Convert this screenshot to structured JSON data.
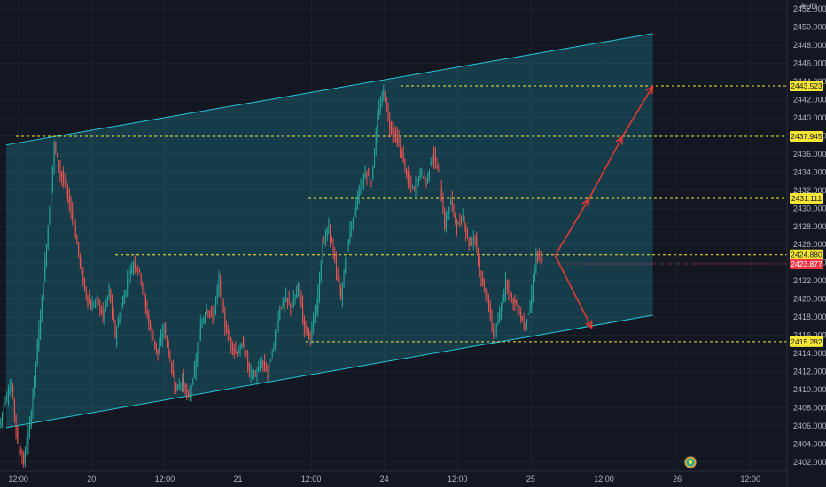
{
  "chart_data": {
    "type": "candlestick",
    "currency": "AUD",
    "y_axis": {
      "range": [
        2401,
        2453
      ],
      "ticks": [
        "2402.000",
        "2404.000",
        "2406.000",
        "2408.000",
        "2410.000",
        "2412.000",
        "2414.000",
        "2416.000",
        "2418.000",
        "2420.000",
        "2422.000",
        "2424.000",
        "2426.000",
        "2428.000",
        "2430.000",
        "2432.000",
        "2434.000",
        "2436.000",
        "2438.000",
        "2440.000",
        "2442.000",
        "2444.000",
        "2446.000",
        "2448.000",
        "2450.000",
        "2452.000"
      ]
    },
    "x_axis": {
      "labels": [
        {
          "text": "12:00",
          "t": 0
        },
        {
          "text": "20",
          "t": 12
        },
        {
          "text": "12:00",
          "t": 24
        },
        {
          "text": "21",
          "t": 36
        },
        {
          "text": "12:00",
          "t": 48
        },
        {
          "text": "24",
          "t": 60
        },
        {
          "text": "12:00",
          "t": 72
        },
        {
          "text": "25",
          "t": 84
        },
        {
          "text": "12:00",
          "t": 96
        },
        {
          "text": "26",
          "t": 108
        },
        {
          "text": "12:00",
          "t": 120
        }
      ],
      "range": [
        -3,
        126
      ]
    },
    "price_path": [
      [
        -3,
        2406
      ],
      [
        -2,
        2409
      ],
      [
        -1,
        2410.5
      ],
      [
        0,
        2404
      ],
      [
        1,
        2402
      ],
      [
        2,
        2406
      ],
      [
        3,
        2413
      ],
      [
        4,
        2420
      ],
      [
        5,
        2428
      ],
      [
        6,
        2437
      ],
      [
        7,
        2434
      ],
      [
        8,
        2432
      ],
      [
        9,
        2429
      ],
      [
        10,
        2425
      ],
      [
        11,
        2421
      ],
      [
        12,
        2419
      ],
      [
        13,
        2420
      ],
      [
        14,
        2418
      ],
      [
        15,
        2421
      ],
      [
        16,
        2416
      ],
      [
        17,
        2419
      ],
      [
        18,
        2422
      ],
      [
        19,
        2424
      ],
      [
        20,
        2423
      ],
      [
        21,
        2419
      ],
      [
        22,
        2416
      ],
      [
        23,
        2414
      ],
      [
        24,
        2417
      ],
      [
        25,
        2413
      ],
      [
        26,
        2410
      ],
      [
        27,
        2411
      ],
      [
        28,
        2409
      ],
      [
        29,
        2412
      ],
      [
        30,
        2417
      ],
      [
        31,
        2419
      ],
      [
        32,
        2418
      ],
      [
        33,
        2422
      ],
      [
        34,
        2417
      ],
      [
        35,
        2415
      ],
      [
        36,
        2414
      ],
      [
        37,
        2415
      ],
      [
        38,
        2412
      ],
      [
        39,
        2411.5
      ],
      [
        40,
        2413
      ],
      [
        41,
        2412
      ],
      [
        42,
        2415
      ],
      [
        43,
        2419
      ],
      [
        44,
        2420
      ],
      [
        45,
        2419
      ],
      [
        46,
        2421.5
      ],
      [
        47,
        2417
      ],
      [
        48,
        2416
      ],
      [
        49,
        2419
      ],
      [
        50,
        2426
      ],
      [
        51,
        2428
      ],
      [
        52,
        2424
      ],
      [
        53,
        2420
      ],
      [
        54,
        2426
      ],
      [
        55,
        2429
      ],
      [
        56,
        2432
      ],
      [
        57,
        2434
      ],
      [
        58,
        2433
      ],
      [
        59,
        2440
      ],
      [
        60,
        2443
      ],
      [
        61,
        2439
      ],
      [
        62,
        2438
      ],
      [
        63,
        2436
      ],
      [
        64,
        2433
      ],
      [
        65,
        2432
      ],
      [
        66,
        2434
      ],
      [
        67,
        2433
      ],
      [
        68,
        2436
      ],
      [
        69,
        2434
      ],
      [
        70,
        2428
      ],
      [
        71,
        2431
      ],
      [
        72,
        2428
      ],
      [
        73,
        2429
      ],
      [
        74,
        2426
      ],
      [
        75,
        2427
      ],
      [
        76,
        2422
      ],
      [
        77,
        2420
      ],
      [
        78,
        2416
      ],
      [
        79,
        2418
      ],
      [
        80,
        2422
      ],
      [
        81,
        2420
      ],
      [
        82,
        2419
      ],
      [
        83,
        2417
      ],
      [
        84,
        2419
      ],
      [
        85,
        2425
      ],
      [
        86,
        2424
      ]
    ],
    "channel": {
      "upper": [
        [
          -2,
          2437
        ],
        [
          104,
          2449.3
        ]
      ],
      "lower": [
        [
          -2,
          2405.8
        ],
        [
          104,
          2418.2
        ]
      ],
      "color": "#26c6da"
    },
    "levels": [
      {
        "price": 2443.523,
        "label": "2443.523",
        "color": "#f7e733",
        "text_color": "#131722"
      },
      {
        "price": 2437.945,
        "label": "2437.945",
        "color": "#f7e733",
        "text_color": "#131722"
      },
      {
        "price": 2431.111,
        "label": "2431.111",
        "color": "#f7e733",
        "text_color": "#131722"
      },
      {
        "price": 2424.88,
        "label": "2424.880",
        "color": "#f7e733",
        "text_color": "#131722"
      },
      {
        "price": 2415.282,
        "label": "2415.282",
        "color": "#f7e733",
        "text_color": "#131722"
      }
    ],
    "current_price": {
      "price": 2423.877,
      "label": "2423.877",
      "color": "#f23645"
    },
    "projection_arrows": [
      [
        [
          88,
          2424.8
        ],
        [
          93.5,
          2431
        ]
      ],
      [
        [
          93.5,
          2431
        ],
        [
          99,
          2437.9
        ]
      ],
      [
        [
          99,
          2437.9
        ],
        [
          104,
          2443.5
        ]
      ],
      [
        [
          88,
          2424.8
        ],
        [
          94,
          2416.8
        ]
      ]
    ],
    "colors": {
      "up": "#26a69a",
      "down": "#ef5350",
      "grid": "#1e222d",
      "arrow": "#e53935"
    }
  }
}
